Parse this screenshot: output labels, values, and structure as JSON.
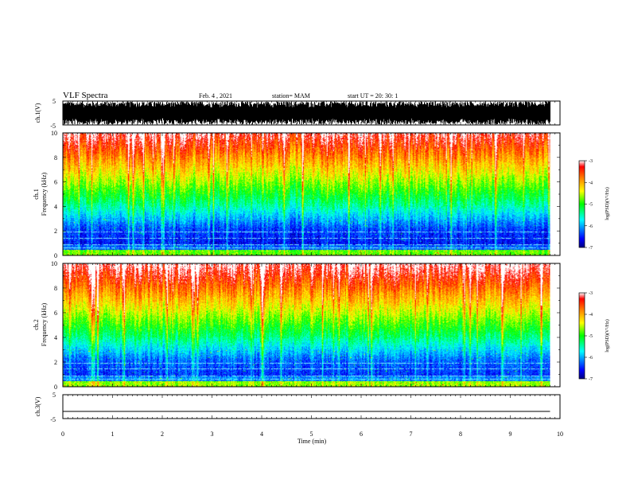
{
  "header": {
    "title": "VLF Spectra",
    "date": "Feb. 4 , 2021",
    "station": "station= MAM",
    "start": "start UT =  20: 30: 1"
  },
  "colors": {
    "background": "#ffffff",
    "axis": "#000000",
    "colormap": [
      "#000080",
      "#0000ff",
      "#00ffff",
      "#00ff00",
      "#ffff00",
      "#ff8000",
      "#ff0000",
      "#ffffff"
    ]
  },
  "chart_data": [
    {
      "id": "ch1-waveform",
      "type": "line",
      "ylabel": "ch.1(V)",
      "ylim": [
        -5,
        5
      ],
      "yticks": [
        "5",
        "-5"
      ],
      "xlim": [
        0,
        10
      ],
      "description_values": {
        "signal": "dense broadband noise waveform",
        "x_end": 9.8
      }
    },
    {
      "id": "ch1-spectrogram",
      "type": "heatmap",
      "ylabel": "ch.1\nFrequency (kHz)",
      "ylabel_lines": [
        "ch.1",
        "Frequency (kHz)"
      ],
      "ylim": [
        0,
        10
      ],
      "yticks": [
        "0",
        "2",
        "4",
        "6",
        "8",
        "10"
      ],
      "xlim": [
        0,
        10
      ],
      "x_end": 9.8,
      "colorbar": {
        "label": "log(PSD)(V²/Hz)",
        "range": [
          -7,
          -3
        ],
        "ticks": [
          "-3",
          "-4",
          "-5",
          "-6",
          "-7"
        ]
      }
    },
    {
      "id": "ch2-spectrogram",
      "type": "heatmap",
      "ylabel_lines": [
        "ch.2",
        "Frequency (kHz)"
      ],
      "ylim": [
        0,
        10
      ],
      "yticks": [
        "0",
        "2",
        "4",
        "6",
        "8",
        "10"
      ],
      "xlim": [
        0,
        10
      ],
      "x_end": 9.8,
      "colorbar": {
        "label": "log(PSD)(V²/Hz)",
        "range": [
          -7,
          -3
        ],
        "ticks": [
          "-3",
          "-4",
          "-5",
          "-6",
          "-7"
        ]
      }
    },
    {
      "id": "ch3-waveform",
      "type": "line",
      "ylabel": "ch.3(V)",
      "ylim": [
        -5,
        5
      ],
      "yticks": [
        "5",
        "-5"
      ],
      "xlim": [
        0,
        10
      ],
      "x_end": 9.8,
      "values": {
        "constant": -2
      }
    },
    {
      "id": "time-axis",
      "xlabel": "Time (min)",
      "xticks": [
        "0",
        "1",
        "2",
        "3",
        "4",
        "5",
        "6",
        "7",
        "8",
        "9",
        "10"
      ]
    }
  ]
}
